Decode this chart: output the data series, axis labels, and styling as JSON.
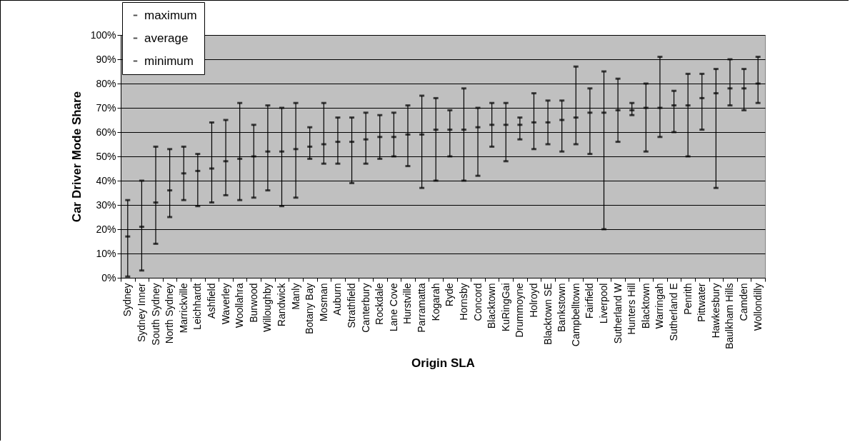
{
  "chart_data": {
    "type": "scatter",
    "xlabel": "Origin SLA",
    "ylabel": "Car Driver Mode Share",
    "categories": [
      "Sydney",
      "Sydney Inner",
      "South Sydney",
      "North Sydney",
      "Marrickville",
      "Leichhardt",
      "Ashfield",
      "Waverley",
      "Woollahra",
      "Burwood",
      "Willoughby",
      "Randwick",
      "Manly",
      "Botany Bay",
      "Mosman",
      "Auburn",
      "Strathfield",
      "Canterbury",
      "Rockdale",
      "Lane Cove",
      "Hurstville",
      "Parramatta",
      "Kogarah",
      "Ryde",
      "Hornsby",
      "Concord",
      "Blacktown",
      "KuRingGai",
      "Drummoyne",
      "Holroyd",
      "Blacktown SE",
      "Bankstown",
      "Campbelltown",
      "Fairfield",
      "Liverpool",
      "Sutherland W",
      "Hunters Hill",
      "Blacktown",
      "Warringah",
      "Sutherland E",
      "Penrith",
      "Pittwater",
      "Hawkesbury",
      "Baulkham Hills",
      "Camden",
      "Wollondilly"
    ],
    "series": [
      {
        "name": "maximum",
        "color": "#000000",
        "values": [
          32,
          40,
          54,
          53,
          54,
          51,
          64,
          65,
          72,
          63,
          71,
          70,
          72,
          62,
          72,
          66,
          66,
          68,
          67,
          68,
          71,
          75,
          74,
          69,
          78,
          70,
          72,
          72,
          66,
          76,
          73,
          73,
          87,
          78,
          85,
          82,
          72,
          80,
          91,
          77,
          84,
          84,
          86,
          90,
          86,
          91
        ]
      },
      {
        "name": "average",
        "color": "#000000",
        "values": [
          17,
          21,
          31,
          36,
          43,
          44,
          45,
          48,
          49,
          50,
          52,
          52,
          53,
          54,
          55,
          56,
          56,
          57,
          58,
          58,
          59,
          59,
          61,
          61,
          61,
          62,
          63,
          63,
          63,
          64,
          64,
          65,
          66,
          68,
          68,
          69,
          69,
          70,
          70,
          71,
          71,
          74,
          76,
          78,
          78,
          80
        ]
      },
      {
        "name": "minimum",
        "color": "#000000",
        "values": [
          0.5,
          3,
          14,
          25,
          32,
          29.5,
          31,
          34,
          32,
          33,
          36,
          29.5,
          33,
          49,
          47,
          47,
          39,
          47,
          49,
          50,
          46,
          37,
          40,
          50,
          40,
          42,
          54,
          48,
          57,
          53,
          55,
          52,
          55,
          51,
          20,
          56,
          67,
          52,
          58,
          60,
          50,
          61,
          37,
          71,
          69,
          72
        ]
      }
    ],
    "ylim": [
      0,
      100
    ],
    "yticks": [
      {
        "value": 0,
        "label": "0%"
      },
      {
        "value": 10,
        "label": "10%"
      },
      {
        "value": 20,
        "label": "20%"
      },
      {
        "value": 30,
        "label": "30%"
      },
      {
        "value": 40,
        "label": "40%"
      },
      {
        "value": 50,
        "label": "50%"
      },
      {
        "value": 60,
        "label": "60%"
      },
      {
        "value": 70,
        "label": "70%"
      },
      {
        "value": 80,
        "label": "80%"
      },
      {
        "value": 90,
        "label": "90%"
      },
      {
        "value": 100,
        "label": "100%"
      }
    ],
    "grid": "y",
    "legend": "top left"
  }
}
